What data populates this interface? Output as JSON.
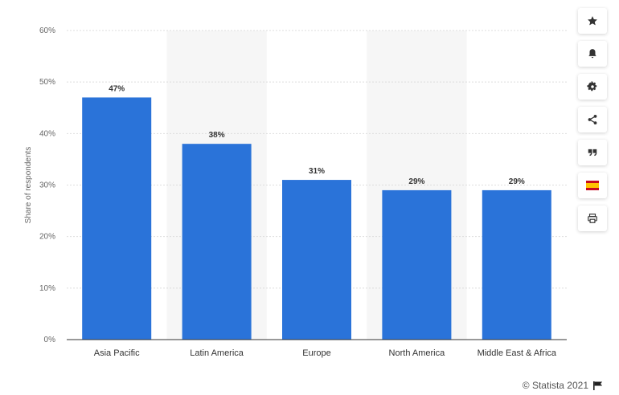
{
  "chart_data": {
    "type": "bar",
    "categories": [
      "Asia Pacific",
      "Latin America",
      "Europe",
      "North America",
      "Middle East & Africa"
    ],
    "values": [
      47,
      38,
      31,
      29,
      29
    ],
    "data_labels": [
      "47%",
      "38%",
      "31%",
      "29%",
      "29%"
    ],
    "title": "",
    "xlabel": "",
    "ylabel": "Share of respondents",
    "ylim": [
      0,
      60
    ],
    "yticks": [
      0,
      10,
      20,
      30,
      40,
      50,
      60
    ],
    "ytick_labels": [
      "0%",
      "10%",
      "20%",
      "30%",
      "40%",
      "50%",
      "60%"
    ],
    "grid": true,
    "legend": "none",
    "bar_color": "#2a73d9",
    "band_color": "#f6f6f6"
  },
  "toolbar": {
    "items": [
      {
        "name": "star-icon"
      },
      {
        "name": "bell-icon"
      },
      {
        "name": "gear-icon"
      },
      {
        "name": "share-icon"
      },
      {
        "name": "quote-icon"
      },
      {
        "name": "spain-flag-icon"
      },
      {
        "name": "print-icon"
      }
    ]
  },
  "footer": {
    "credit": "© Statista 2021",
    "flag_icon": "flag-icon"
  }
}
